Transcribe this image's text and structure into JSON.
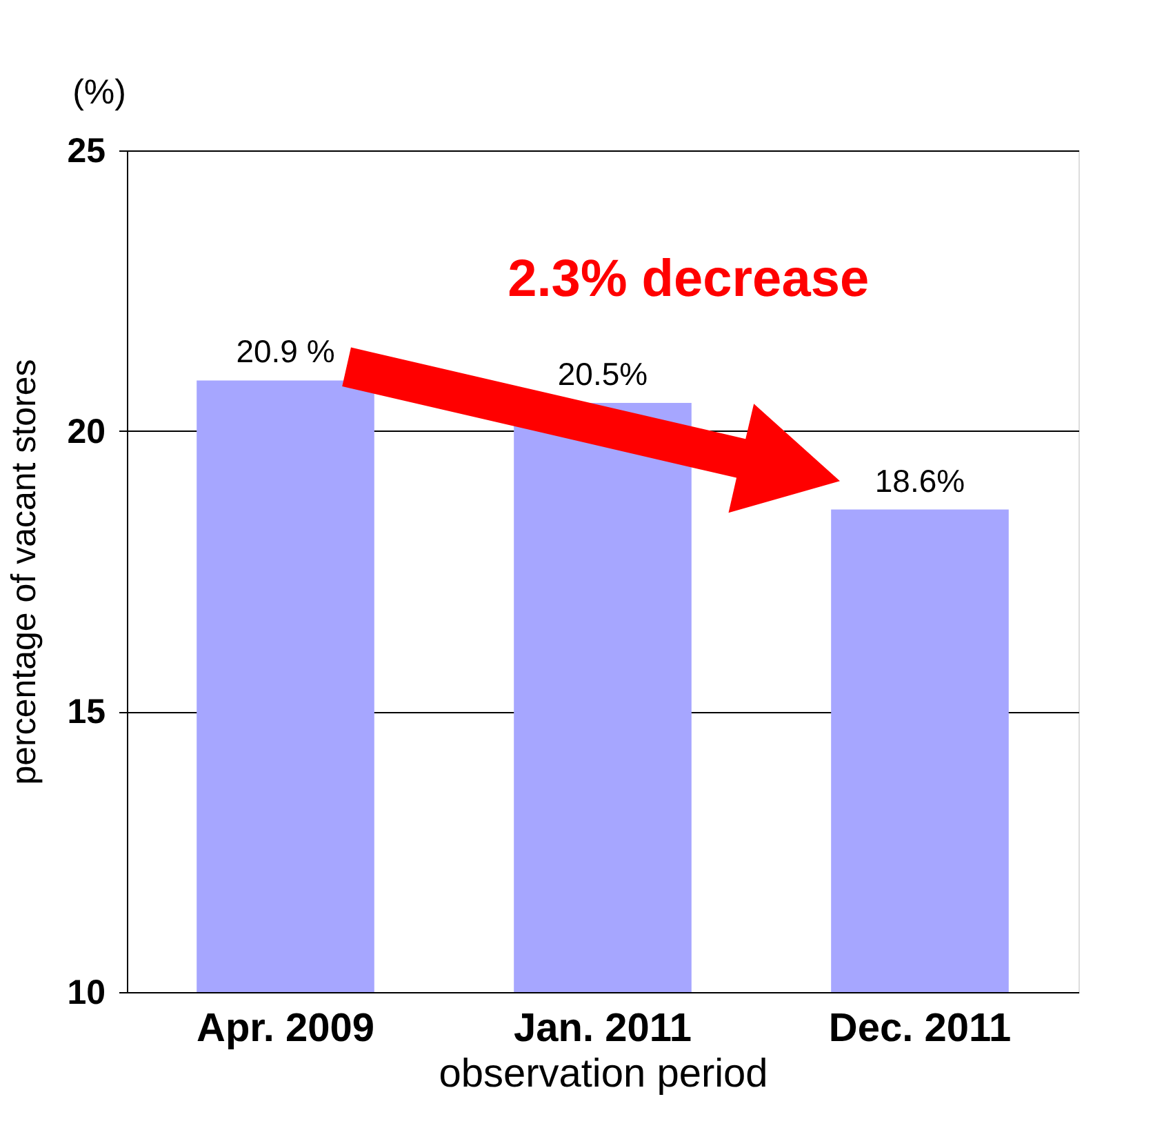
{
  "chart_data": {
    "type": "bar",
    "categories": [
      "Apr. 2009",
      "Jan. 2011",
      "Dec. 2011"
    ],
    "values": [
      20.9,
      20.5,
      18.6
    ],
    "value_labels": [
      "20.9 %",
      "20.5%",
      "18.6%"
    ],
    "color": "#a6a6ff",
    "ylim": [
      10,
      25
    ],
    "yticks": [
      10,
      15,
      20,
      25
    ],
    "grid": "y",
    "ylabel": "percentage of vacant stores",
    "xlabel": "observation period",
    "annotations": [
      "(%)",
      "2.3% decrease"
    ]
  }
}
